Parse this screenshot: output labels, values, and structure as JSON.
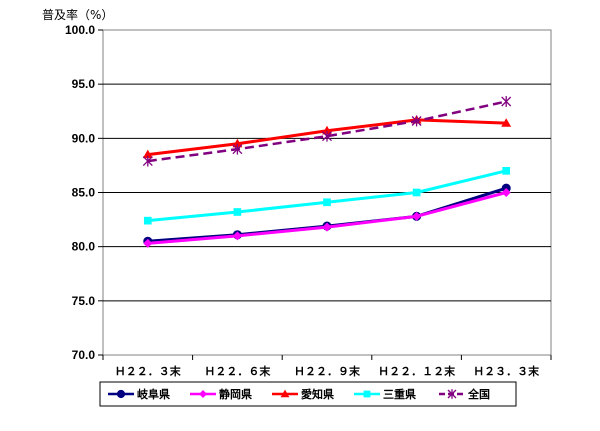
{
  "chart_data": {
    "type": "line",
    "ylabel": "普及率（%）",
    "ylim": [
      70,
      100
    ],
    "yticks": [
      "70.0",
      "75.0",
      "80.0",
      "85.0",
      "90.0",
      "95.0",
      "100.0"
    ],
    "categories": [
      "Ｈ２２．３末",
      "Ｈ２２．６末",
      "Ｈ２２．９末",
      "Ｈ２２．１２末",
      "Ｈ２３．３末"
    ],
    "grid": true,
    "legend_position": "bottom",
    "series": [
      {
        "name": "岐阜県",
        "values": [
          80.5,
          81.1,
          81.9,
          82.8,
          85.4
        ],
        "color": "#000080",
        "marker": "circle",
        "dash": false
      },
      {
        "name": "静岡県",
        "values": [
          80.3,
          81.0,
          81.8,
          82.8,
          85.0
        ],
        "color": "#ff00ff",
        "marker": "diamond",
        "dash": false
      },
      {
        "name": "愛知県",
        "values": [
          88.5,
          89.5,
          90.7,
          91.7,
          91.4
        ],
        "color": "#ff0000",
        "marker": "triangle",
        "dash": false
      },
      {
        "name": "三重県",
        "values": [
          82.4,
          83.2,
          84.1,
          85.0,
          87.0
        ],
        "color": "#00ffff",
        "marker": "square",
        "dash": false
      },
      {
        "name": "全国",
        "values": [
          87.9,
          89.0,
          90.2,
          91.6,
          93.4
        ],
        "color": "#800080",
        "marker": "asterisk",
        "dash": true
      }
    ]
  }
}
